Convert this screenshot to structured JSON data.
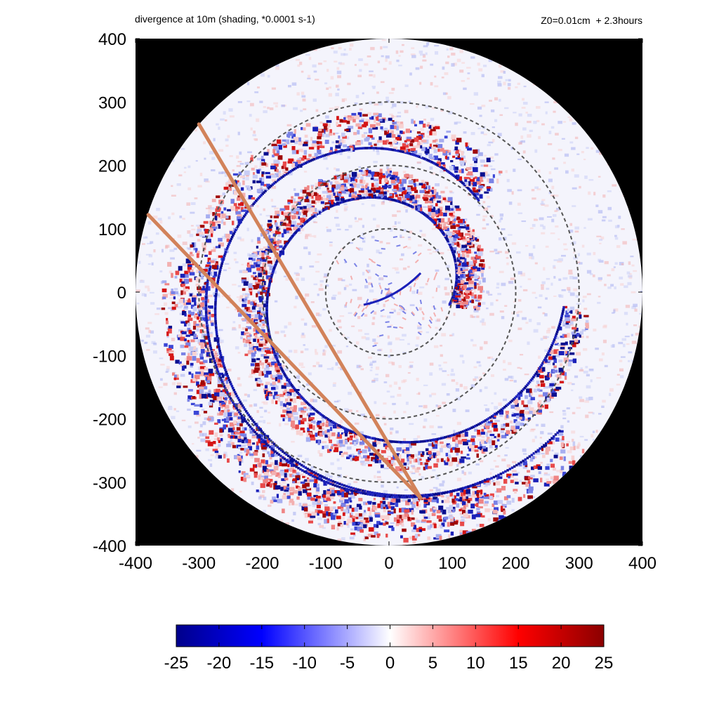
{
  "header": {
    "title_left": "divergence at 10m (shading, *0.0001 s-1)",
    "title_right": "Z0=0.01cm  + 2.3hours"
  },
  "chart_data": {
    "type": "heatmap",
    "title": "divergence at 10m (shading, *0.0001 s-1)",
    "subtitle": "Z0=0.01cm  + 2.3hours",
    "xlabel": "",
    "ylabel": "",
    "xlim": [
      -400,
      400
    ],
    "ylim": [
      -400,
      400
    ],
    "x_ticks": [
      -400,
      -300,
      -200,
      -100,
      0,
      100,
      200,
      300,
      400
    ],
    "y_ticks": [
      -400,
      -300,
      -200,
      -100,
      0,
      100,
      200,
      300,
      400
    ],
    "x_tick_labels": [
      "-400",
      "-300",
      "-200",
      "-100",
      "0",
      "100",
      "200",
      "300",
      "400"
    ],
    "y_tick_labels": [
      "400",
      "300",
      "200",
      "100",
      "0",
      "-100",
      "-200",
      "-300",
      "-400"
    ],
    "domain_radius": 400,
    "outside_domain_color": "#000000",
    "range_rings_radius": [
      100,
      200,
      300
    ],
    "range_ring_style": "dashed gray",
    "tracks": [
      {
        "color": "#d2825a",
        "points": [
          [
            -300,
            265
          ],
          [
            50,
            -325
          ]
        ]
      },
      {
        "color": "#d2825a",
        "points": [
          [
            -380,
            122
          ],
          [
            50,
            -325
          ]
        ]
      }
    ],
    "colorbar": {
      "min": -25,
      "max": 25,
      "tick_values": [
        -25,
        -20,
        -15,
        -10,
        -5,
        0,
        5,
        10,
        15,
        20,
        25
      ],
      "tick_labels": [
        "-25",
        "-20",
        "-15",
        "-10",
        "-5",
        "0",
        "5",
        "10",
        "15",
        "20",
        "25"
      ],
      "colors": [
        "#00008b",
        "#0000ff",
        "#ffffff",
        "#ff0000",
        "#8b0000"
      ]
    }
  }
}
